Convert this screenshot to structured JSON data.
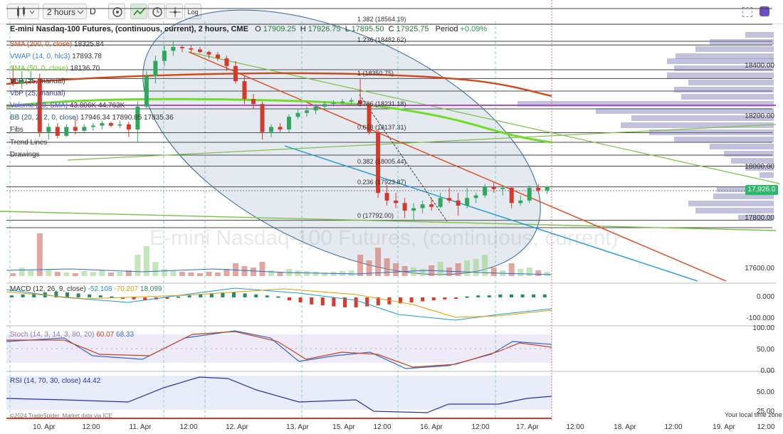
{
  "toolbar": {
    "interval": "2 hours",
    "chart_type_letter": "D",
    "log_label": "Log",
    "icons": [
      "candles-icon",
      "settings-icon",
      "line-tool-icon",
      "clock-icon",
      "crosshair-icon",
      "log-toggle"
    ]
  },
  "header": {
    "title": "E-mini Nasdaq-100 Futures, (continuous, current), 2 hours, CME",
    "o_label": "O",
    "o_value": "17909.25",
    "h_label": "H",
    "h_value": "17926.75",
    "l_label": "L",
    "l_value": "17895.50",
    "c_label": "C",
    "c_value": "17925.75",
    "period_label": "Period",
    "period_value": "+0.09%"
  },
  "legend": [
    {
      "label": "SMA (200, 0, close)",
      "value": "18325.84",
      "color": "#d0491b",
      "value2": "",
      "value3": ""
    },
    {
      "label": "VWAP (14, 0, hlc3)",
      "value": "17893.78",
      "color": "#3b7dd8",
      "value2": "",
      "value3": ""
    },
    {
      "label": "SMA (50, 0, close)",
      "value": "18136.70",
      "color": "#64d21e",
      "value2": "",
      "value3": ""
    },
    {
      "label": "VbP (25, manual)",
      "value": "",
      "color": "#333333",
      "value2": "",
      "value3": ""
    },
    {
      "label": "VbP (25, manual)",
      "value": "",
      "color": "#3a3a9a",
      "value2": "",
      "value3": ""
    },
    {
      "label": "Volume (20, SMA)",
      "value": "43.806K",
      "color": "#2e6ad1",
      "value2": "44.763K",
      "value3": ""
    },
    {
      "label": "BB (20, 2, 2, 0, close)",
      "value": "17946.34",
      "color": "#245a8a",
      "value2": "17890.85",
      "value3": "17835.36"
    },
    {
      "label": "Fibs",
      "value": "",
      "color": "#333333",
      "value2": "",
      "value3": ""
    },
    {
      "label": "Trend Lines",
      "value": "",
      "color": "#333333",
      "value2": "",
      "value3": ""
    },
    {
      "label": "Drawings",
      "value": "",
      "color": "#333333",
      "value2": "",
      "value3": ""
    }
  ],
  "fib_levels": [
    {
      "label": "1.382 (18564.19)",
      "price": 18564.19
    },
    {
      "label": "1.236 (18482.62)",
      "price": 18482.62
    },
    {
      "label": "1 (18350.75)",
      "price": 18350.75
    },
    {
      "label": "0.786 (18231.18)",
      "price": 18231.18
    },
    {
      "label": "0.618 (18137.31)",
      "price": 18137.31
    },
    {
      "label": "0.382 (18005.44)",
      "price": 18005.44
    },
    {
      "label": "0.236 (17923.87)",
      "price": 17923.87
    },
    {
      "label": "0 (17792.00)",
      "price": 17792.0
    }
  ],
  "price_axis": [
    "18400.00",
    "18200.00",
    "18000.00",
    "17800.00",
    "17600.00"
  ],
  "price_tag": "17,926.0",
  "watermark": "E-mini Nasdaq-100 Futures, (continuous, current)",
  "macd": {
    "label": "MACD (12, 26, 9, close)",
    "v1": "-52.108",
    "v2": "-70.207",
    "v3": "18.099",
    "axis": [
      "0.000",
      "-100.000"
    ]
  },
  "stoch": {
    "label": "Stoch (14, 3, 14, 3, 80, 20)",
    "v1": "60.07",
    "v2": "68.33",
    "axis": [
      "100.00",
      "50.00",
      "0.00"
    ]
  },
  "rsi": {
    "label": "RSI (14, 70, 30, close)",
    "v1": "44.42",
    "axis": [
      "50.00",
      "25.00"
    ]
  },
  "time_axis": [
    "10. Apr",
    "12:00",
    "11. Apr",
    "12:00",
    "12. Apr",
    "13. Apr",
    "15. Apr",
    "12:00",
    "16. Apr",
    "12:00",
    "17. Apr",
    "12:00",
    "18. Apr",
    "12:00",
    "19. Apr",
    "12:00"
  ],
  "footer": {
    "credit": "©2024 TradeSpider. Market data via ICE",
    "local_time": "Your local time zone"
  },
  "chart_data": {
    "type": "candlestick",
    "title": "E-mini Nasdaq-100 Futures, (continuous, current), 2 hours, CME",
    "ylim": [
      17550,
      18660
    ],
    "candles": [
      {
        "o": 18350,
        "h": 18400,
        "l": 18320,
        "c": 18330
      },
      {
        "o": 18330,
        "h": 18380,
        "l": 18310,
        "c": 18345
      },
      {
        "o": 18345,
        "h": 18380,
        "l": 18330,
        "c": 18350
      },
      {
        "o": 18350,
        "h": 18370,
        "l": 18120,
        "c": 18140
      },
      {
        "o": 18140,
        "h": 18175,
        "l": 18110,
        "c": 18160
      },
      {
        "o": 18160,
        "h": 18175,
        "l": 18115,
        "c": 18125
      },
      {
        "o": 18125,
        "h": 18170,
        "l": 18120,
        "c": 18160
      },
      {
        "o": 18160,
        "h": 18200,
        "l": 18130,
        "c": 18145
      },
      {
        "o": 18145,
        "h": 18170,
        "l": 18140,
        "c": 18160
      },
      {
        "o": 18160,
        "h": 18175,
        "l": 18145,
        "c": 18165
      },
      {
        "o": 18165,
        "h": 18185,
        "l": 18150,
        "c": 18175
      },
      {
        "o": 18175,
        "h": 18180,
        "l": 18160,
        "c": 18165
      },
      {
        "o": 18165,
        "h": 18185,
        "l": 18155,
        "c": 18170
      },
      {
        "o": 18170,
        "h": 18180,
        "l": 18120,
        "c": 18150
      },
      {
        "o": 18150,
        "h": 18260,
        "l": 18100,
        "c": 18240
      },
      {
        "o": 18240,
        "h": 18380,
        "l": 18230,
        "c": 18360
      },
      {
        "o": 18360,
        "h": 18440,
        "l": 18330,
        "c": 18420
      },
      {
        "o": 18420,
        "h": 18480,
        "l": 18400,
        "c": 18460
      },
      {
        "o": 18460,
        "h": 18500,
        "l": 18440,
        "c": 18475
      },
      {
        "o": 18475,
        "h": 18480,
        "l": 18455,
        "c": 18470
      },
      {
        "o": 18470,
        "h": 18480,
        "l": 18455,
        "c": 18465
      },
      {
        "o": 18465,
        "h": 18475,
        "l": 18450,
        "c": 18455
      },
      {
        "o": 18455,
        "h": 18460,
        "l": 18430,
        "c": 18445
      },
      {
        "o": 18445,
        "h": 18455,
        "l": 18420,
        "c": 18430
      },
      {
        "o": 18430,
        "h": 18440,
        "l": 18380,
        "c": 18400
      },
      {
        "o": 18400,
        "h": 18420,
        "l": 18330,
        "c": 18340
      },
      {
        "o": 18340,
        "h": 18360,
        "l": 18250,
        "c": 18270
      },
      {
        "o": 18270,
        "h": 18290,
        "l": 18230,
        "c": 18250
      },
      {
        "o": 18250,
        "h": 18260,
        "l": 18110,
        "c": 18140
      },
      {
        "o": 18140,
        "h": 18170,
        "l": 18120,
        "c": 18160
      },
      {
        "o": 18160,
        "h": 18175,
        "l": 18140,
        "c": 18150
      },
      {
        "o": 18150,
        "h": 18210,
        "l": 18140,
        "c": 18200
      },
      {
        "o": 18200,
        "h": 18230,
        "l": 18190,
        "c": 18215
      },
      {
        "o": 18215,
        "h": 18240,
        "l": 18200,
        "c": 18225
      },
      {
        "o": 18225,
        "h": 18250,
        "l": 18210,
        "c": 18240
      },
      {
        "o": 18240,
        "h": 18260,
        "l": 18230,
        "c": 18250
      },
      {
        "o": 18250,
        "h": 18265,
        "l": 18240,
        "c": 18255
      },
      {
        "o": 18255,
        "h": 18270,
        "l": 18245,
        "c": 18260
      },
      {
        "o": 18260,
        "h": 18275,
        "l": 18250,
        "c": 18265
      },
      {
        "o": 18265,
        "h": 18350,
        "l": 18240,
        "c": 18250
      },
      {
        "o": 18250,
        "h": 18255,
        "l": 18130,
        "c": 18140
      },
      {
        "o": 18140,
        "h": 18150,
        "l": 17880,
        "c": 17900
      },
      {
        "o": 17900,
        "h": 17930,
        "l": 17850,
        "c": 17870
      },
      {
        "o": 17870,
        "h": 17900,
        "l": 17840,
        "c": 17860
      },
      {
        "o": 17860,
        "h": 17880,
        "l": 17800,
        "c": 17830
      },
      {
        "o": 17830,
        "h": 17860,
        "l": 17792,
        "c": 17840
      },
      {
        "o": 17840,
        "h": 17870,
        "l": 17820,
        "c": 17855
      },
      {
        "o": 17855,
        "h": 17880,
        "l": 17830,
        "c": 17845
      },
      {
        "o": 17845,
        "h": 17900,
        "l": 17840,
        "c": 17880
      },
      {
        "o": 17880,
        "h": 17920,
        "l": 17860,
        "c": 17870
      },
      {
        "o": 17870,
        "h": 17900,
        "l": 17810,
        "c": 17850
      },
      {
        "o": 17850,
        "h": 17920,
        "l": 17840,
        "c": 17880
      },
      {
        "o": 17880,
        "h": 17900,
        "l": 17860,
        "c": 17890
      },
      {
        "o": 17890,
        "h": 17935,
        "l": 17880,
        "c": 17925
      },
      {
        "o": 17925,
        "h": 17940,
        "l": 17900,
        "c": 17915
      },
      {
        "o": 17915,
        "h": 17930,
        "l": 17890,
        "c": 17920
      },
      {
        "o": 17920,
        "h": 17925,
        "l": 17840,
        "c": 17860
      },
      {
        "o": 17860,
        "h": 17890,
        "l": 17850,
        "c": 17870
      },
      {
        "o": 17870,
        "h": 17930,
        "l": 17860,
        "c": 17920
      },
      {
        "o": 17920,
        "h": 17935,
        "l": 17900,
        "c": 17910
      },
      {
        "o": 17909.25,
        "h": 17926.75,
        "l": 17895.5,
        "c": 17925.75
      }
    ]
  }
}
